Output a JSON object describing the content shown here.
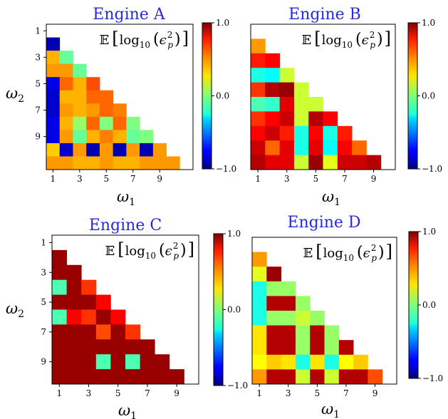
{
  "figure": {
    "colorbar_ticks": [
      "1.0",
      "0.0",
      "−1.0"
    ],
    "colorbar_limits": [
      -1.0,
      1.0
    ],
    "colormap": "jet",
    "annotation": {
      "prefix": "𝔼",
      "bracket_open": "[",
      "func": "log",
      "func_sub": "10",
      "paren_open": "(",
      "var": "ϵ",
      "var_sup": "2",
      "var_sub": "p",
      "paren_close": ")",
      "bracket_close": "]"
    },
    "xlabel": {
      "symbol": "ω",
      "sub": "1"
    },
    "ylabel": {
      "symbol": "ω",
      "sub": "2"
    }
  },
  "chart_data": [
    {
      "type": "heatmap",
      "title": "Engine A",
      "x_ticks": [
        "1",
        "3",
        "5",
        "7",
        "9"
      ],
      "y_ticks": [
        "1",
        "3",
        "5",
        "7",
        "9"
      ],
      "vlim": [
        -1.0,
        1.0
      ],
      "rows": [
        [],
        [
          -0.9
        ],
        [
          0.4,
          -0.05
        ],
        [
          0.45,
          0.45,
          -0.05
        ],
        [
          -0.8,
          0.55,
          0.4,
          0.6
        ],
        [
          -0.85,
          0.4,
          0.4,
          0.55,
          0.55
        ],
        [
          -0.85,
          0.45,
          0.4,
          0.45,
          0.55,
          0.5
        ],
        [
          -0.8,
          0.4,
          0.05,
          0.55,
          0.0,
          0.55,
          0.0
        ],
        [
          -0.8,
          0.45,
          -0.05,
          0.4,
          0.5,
          0.4,
          -0.05,
          0.0
        ],
        [
          0.35,
          -0.85,
          0.45,
          -0.9,
          0.45,
          -0.9,
          0.45,
          -0.9,
          0.45
        ],
        [
          0.45,
          0.45,
          0.4,
          0.4,
          0.45,
          0.4,
          0.4,
          0.45,
          0.45,
          0.45
        ]
      ]
    },
    {
      "type": "heatmap",
      "title": "Engine B",
      "x_ticks": [
        "1",
        "3",
        "5",
        "7",
        "9"
      ],
      "y_ticks": [],
      "vlim": [
        -1.0,
        1.0
      ],
      "rows": [
        [],
        [
          0.45
        ],
        [
          0.7,
          0.75
        ],
        [
          -0.2,
          -0.25,
          0.15
        ],
        [
          0.65,
          0.9,
          0.95,
          0.15
        ],
        [
          -0.1,
          -0.15,
          0.8,
          0.15,
          0.15
        ],
        [
          0.65,
          0.75,
          0.85,
          0.15,
          0.9,
          0.75
        ],
        [
          0.75,
          0.85,
          0.7,
          -0.2,
          0.75,
          -0.2,
          0.7
        ],
        [
          0.85,
          0.55,
          0.8,
          -0.2,
          0.8,
          -0.25,
          0.75,
          0.55
        ],
        [
          0.9,
          0.8,
          0.8,
          0.15,
          0.95,
          0.2,
          0.85,
          0.85,
          0.9
        ]
      ]
    },
    {
      "type": "heatmap",
      "title": "Engine C",
      "x_ticks": [
        "1",
        "3",
        "5",
        "7",
        "9"
      ],
      "y_ticks": [
        "1",
        "3",
        "5",
        "7",
        "9"
      ],
      "vlim": [
        -1.0,
        1.0
      ],
      "rows": [
        [],
        [
          0.95
        ],
        [
          0.95,
          0.95
        ],
        [
          -0.1,
          0.95,
          0.65
        ],
        [
          0.95,
          0.95,
          0.95,
          0.75
        ],
        [
          -0.1,
          0.75,
          0.65,
          0.95,
          0.75
        ],
        [
          0.95,
          0.95,
          0.95,
          0.6,
          0.95,
          0.65
        ],
        [
          0.95,
          0.95,
          0.95,
          0.95,
          0.95,
          0.95,
          0.95
        ],
        [
          0.95,
          0.95,
          0.95,
          -0.1,
          0.95,
          -0.1,
          0.95,
          0.95
        ],
        [
          0.95,
          0.95,
          0.95,
          0.95,
          0.95,
          0.95,
          0.95,
          0.95,
          0.95
        ]
      ]
    },
    {
      "type": "heatmap",
      "title": "Engine D",
      "x_ticks": [
        "1",
        "3",
        "5",
        "7",
        "9"
      ],
      "y_ticks": [],
      "vlim": [
        -1.0,
        1.0
      ],
      "rows": [
        [],
        [
          0.45
        ],
        [
          0.2,
          0.95
        ],
        [
          -0.2,
          0.05,
          0.05
        ],
        [
          -0.2,
          0.9,
          0.9,
          0.05
        ],
        [
          -0.2,
          0.05,
          0.05,
          0.15,
          0.05
        ],
        [
          0.3,
          0.9,
          0.9,
          0.05,
          0.9,
          0.05
        ],
        [
          0.3,
          0.9,
          0.9,
          0.05,
          0.9,
          0.05,
          0.9
        ],
        [
          0.25,
          0.35,
          0.3,
          -0.2,
          0.3,
          -0.2,
          0.25,
          0.35
        ],
        [
          0.45,
          0.9,
          0.9,
          0.15,
          0.9,
          0.15,
          0.9,
          0.9,
          0.6
        ]
      ]
    }
  ]
}
